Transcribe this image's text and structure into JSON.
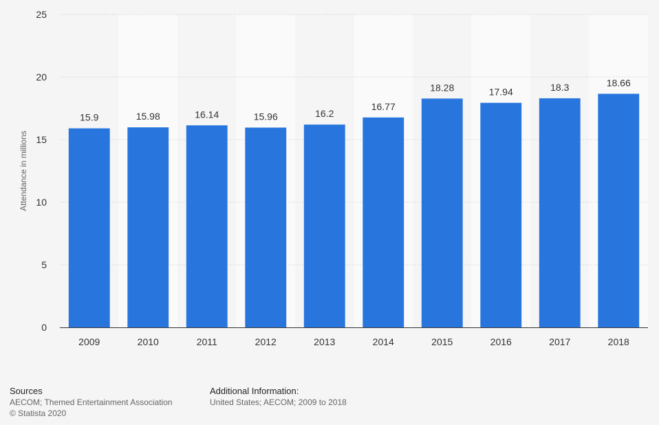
{
  "chart_data": {
    "type": "bar",
    "categories": [
      "2009",
      "2010",
      "2011",
      "2012",
      "2013",
      "2014",
      "2015",
      "2016",
      "2017",
      "2018"
    ],
    "values": [
      15.9,
      15.98,
      16.14,
      15.96,
      16.2,
      16.77,
      18.28,
      17.94,
      18.3,
      18.66
    ],
    "value_labels": [
      "15.9",
      "15.98",
      "16.14",
      "15.96",
      "16.2",
      "16.77",
      "18.28",
      "17.94",
      "18.3",
      "18.66"
    ],
    "ylabel": "Attendance in millions",
    "ylim": [
      0,
      25
    ],
    "yticks": [
      "0",
      "5",
      "10",
      "15",
      "20",
      "25"
    ],
    "grid": true,
    "bar_color": "#2876dd"
  },
  "footer": {
    "sources_heading": "Sources",
    "sources_line1": "AECOM; Themed Entertainment Association",
    "sources_line2": "© Statista 2020",
    "additional_heading": "Additional Information:",
    "additional_line1": "United States; AECOM; 2009 to 2018"
  }
}
